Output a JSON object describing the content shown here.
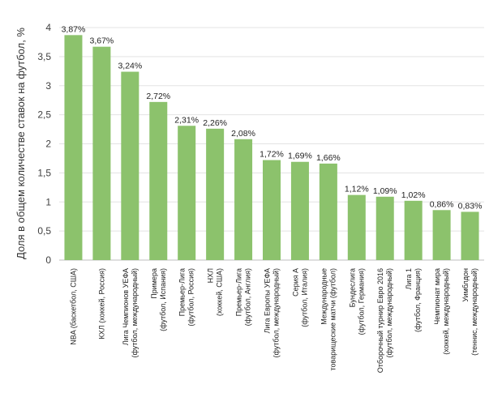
{
  "chart_data": {
    "type": "bar",
    "ylabel": "Доля в общем количестве ставок на футбол, %",
    "xlabel": "",
    "ylim": [
      0,
      4
    ],
    "yticks": [
      "0",
      "0,5",
      "1",
      "1,5",
      "2",
      "2,5",
      "3",
      "3,5",
      "4"
    ],
    "grid": true,
    "bar_color": "#8cc26c",
    "categories": [
      [
        "NBA (баскетбол, США)"
      ],
      [
        "КХЛ (хоккей, Россия)"
      ],
      [
        "Лига Чемпионов УЕФА",
        "(футбол, международный)"
      ],
      [
        "Примера",
        "(футбол, Испания)"
      ],
      [
        "Премьер-Лига",
        "(футбол, Россия)"
      ],
      [
        "НХЛ",
        "(хоккей, США)"
      ],
      [
        "Премьер-Лига",
        "(футбол, Англия)"
      ],
      [
        "Лига Европы УЕФА",
        "(футбол, международный)"
      ],
      [
        "Серия А",
        "(футбол, Италия)"
      ],
      [
        "Международные",
        "товарищеские матчи (футбол)"
      ],
      [
        "Бундеслига",
        "(футбол, Германия)"
      ],
      [
        "Отборочный турнир Евро 2016",
        "(футбол, международный)"
      ],
      [
        "Лига 1",
        "(футбол, Франция)"
      ],
      [
        "Чемпионат мира",
        "(хоккей, международный)"
      ],
      [
        "Уимблдон",
        "(теннис, международный)"
      ]
    ],
    "values": [
      3.87,
      3.67,
      3.24,
      2.72,
      2.31,
      2.26,
      2.08,
      1.72,
      1.69,
      1.66,
      1.12,
      1.09,
      1.02,
      0.86,
      0.83
    ],
    "value_labels": [
      "3,87%",
      "3,67%",
      "3,24%",
      "2,72%",
      "2,31%",
      "2,26%",
      "2,08%",
      "1,72%",
      "1,69%",
      "1,66%",
      "1,12%",
      "1,09%",
      "1,02%",
      "0,86%",
      "0,83%"
    ]
  }
}
